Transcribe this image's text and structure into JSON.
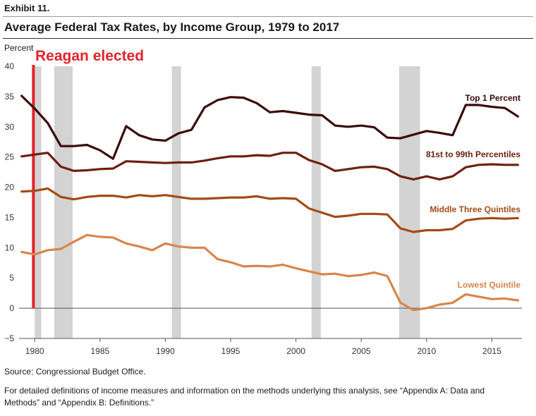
{
  "header": {
    "exhibit": "Exhibit 11.",
    "title": "Average Federal Tax Rates, by Income Group, 1979 to 2017"
  },
  "footer": {
    "source": "Source: Congressional Budget Office.",
    "note": "For detailed definitions of income measures and information on the methods underlying this analysis, see “Appendix A: Data and Methods” and “Appendix B: Definitions.”"
  },
  "chart_data": {
    "type": "line",
    "title": "Average Federal Tax Rates, by Income Group, 1979 to 2017",
    "ylabel": "Percent",
    "xlabel": "",
    "xlim": [
      1978.8,
      2017.3
    ],
    "ylim": [
      -5,
      40
    ],
    "x_ticks": [
      1980,
      1985,
      1990,
      1995,
      2000,
      2005,
      2010,
      2015
    ],
    "y_ticks": [
      -5,
      0,
      5,
      10,
      15,
      20,
      25,
      30,
      35,
      40
    ],
    "x": [
      1979,
      1980,
      1981,
      1982,
      1983,
      1984,
      1985,
      1986,
      1987,
      1988,
      1989,
      1990,
      1991,
      1992,
      1993,
      1994,
      1995,
      1996,
      1997,
      1998,
      1999,
      2000,
      2001,
      2002,
      2003,
      2004,
      2005,
      2006,
      2007,
      2008,
      2009,
      2010,
      2011,
      2012,
      2013,
      2014,
      2015,
      2016,
      2017
    ],
    "recession_shading": [
      [
        1980.0,
        1980.5
      ],
      [
        1981.5,
        1982.9
      ],
      [
        1990.5,
        1991.2
      ],
      [
        2001.2,
        2001.9
      ],
      [
        2007.9,
        2009.5
      ]
    ],
    "series": [
      {
        "name": "Top 1 Percent",
        "color": "#3b0a0a",
        "values": [
          35.1,
          33.0,
          30.6,
          26.8,
          26.8,
          27.0,
          26.1,
          24.7,
          30.1,
          28.6,
          27.9,
          27.7,
          28.9,
          29.5,
          33.2,
          34.4,
          34.9,
          34.8,
          33.9,
          32.4,
          32.6,
          32.3,
          32.0,
          31.9,
          30.2,
          30.0,
          30.2,
          29.9,
          28.2,
          28.1,
          28.7,
          29.3,
          29.0,
          28.6,
          33.6,
          33.6,
          33.3,
          33.1,
          31.7
        ]
      },
      {
        "name": "81st to 99th Percentiles",
        "color": "#6e1f0f",
        "values": [
          25.1,
          25.4,
          25.7,
          23.4,
          22.7,
          22.8,
          23.0,
          23.1,
          24.3,
          24.2,
          24.1,
          24.0,
          24.1,
          24.1,
          24.4,
          24.8,
          25.1,
          25.1,
          25.3,
          25.2,
          25.7,
          25.7,
          24.5,
          23.8,
          22.7,
          23.0,
          23.3,
          23.4,
          23.0,
          21.8,
          21.3,
          21.8,
          21.3,
          21.8,
          23.3,
          23.7,
          23.8,
          23.7,
          23.7
        ]
      },
      {
        "name": "Middle Three Quintiles",
        "color": "#a44a16",
        "values": [
          19.3,
          19.4,
          19.8,
          18.4,
          18.0,
          18.4,
          18.6,
          18.6,
          18.3,
          18.7,
          18.5,
          18.7,
          18.4,
          18.1,
          18.1,
          18.2,
          18.3,
          18.3,
          18.5,
          18.1,
          18.2,
          18.1,
          16.5,
          15.8,
          15.1,
          15.3,
          15.6,
          15.6,
          15.5,
          13.2,
          12.6,
          12.9,
          12.9,
          13.1,
          14.5,
          14.8,
          14.9,
          14.8,
          14.9
        ]
      },
      {
        "name": "Lowest Quintile",
        "color": "#d8854b",
        "values": [
          9.3,
          8.9,
          9.6,
          9.8,
          11.0,
          12.1,
          11.8,
          11.7,
          10.7,
          10.2,
          9.6,
          10.7,
          10.2,
          10.0,
          10.0,
          8.1,
          7.6,
          6.9,
          7.0,
          6.9,
          7.2,
          6.6,
          6.1,
          5.6,
          5.7,
          5.3,
          5.5,
          5.9,
          5.3,
          0.9,
          -0.3,
          0.0,
          0.6,
          0.9,
          2.3,
          1.9,
          1.5,
          1.6,
          1.3
        ]
      }
    ],
    "annotations": [
      {
        "text": "Reagan elected",
        "x": 1979.9,
        "color": "#e3222b"
      }
    ],
    "colors": {
      "recession": "#d3d3d3",
      "axis": "#555555",
      "marker": "#e3222b"
    }
  }
}
